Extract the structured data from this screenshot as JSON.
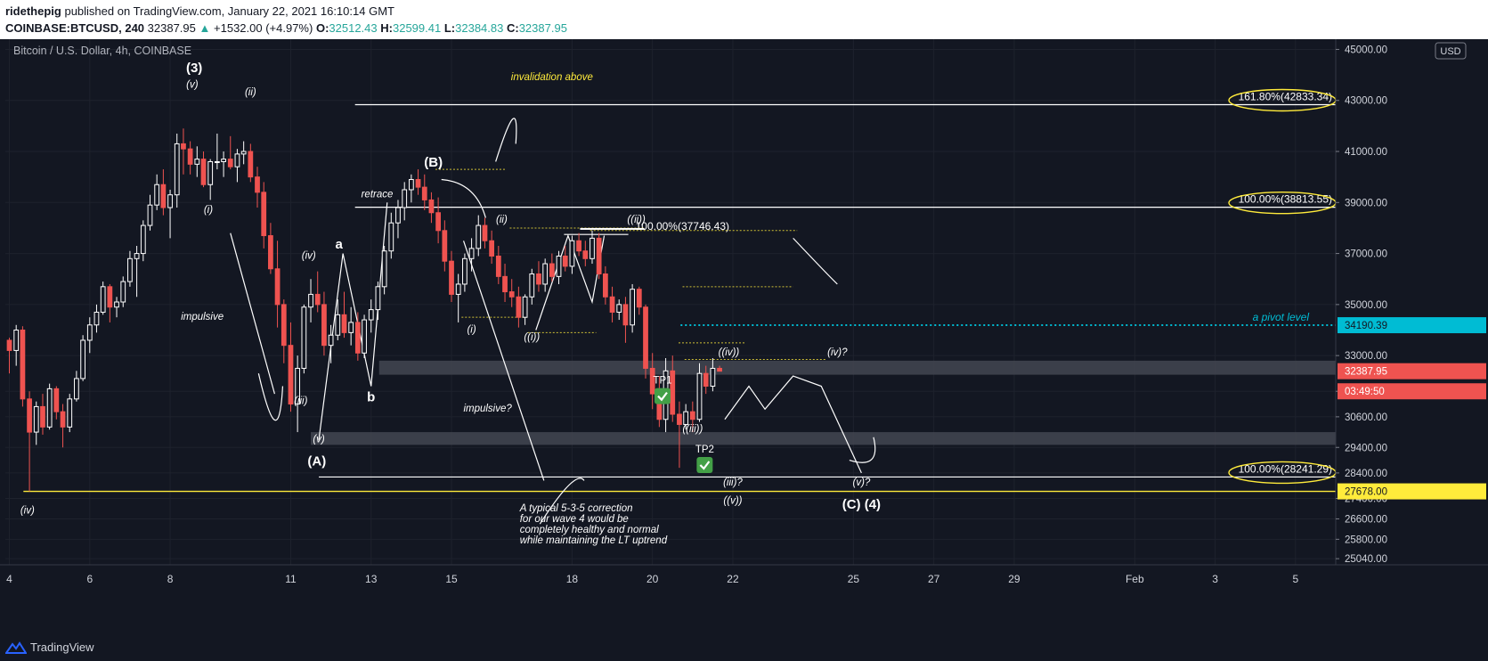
{
  "header": {
    "author": "ridethepig",
    "published": "published on TradingView.com, January 22, 2021 16:10:14 GMT",
    "symbol": "COINBASE:BTCUSD, 240",
    "last": "32387.95",
    "change": "+1532.00 (+4.97%)",
    "o_label": "O:",
    "o": "32512.43",
    "h_label": "H:",
    "h": "32599.41",
    "l_label": "L:",
    "l": "32384.83",
    "c_label": "C:",
    "c": "32387.95"
  },
  "footer": {
    "brand": "TradingView"
  },
  "colors": {
    "bg": "#131722",
    "up": "#ffffff",
    "down": "#ef5350",
    "grid": "#1e222d",
    "pivot": "#00bcd4",
    "yellow": "#ffeb3b"
  },
  "chart_data": {
    "type": "candlestick",
    "title": "Bitcoin / U.S. Dollar, 4h, COINBASE",
    "currency": "USD",
    "y_ticks": [
      25040,
      25800,
      26600,
      27400,
      28400,
      29400,
      30600,
      31600,
      33000,
      35000,
      37000,
      39000,
      41000,
      43000,
      45000
    ],
    "y_range": [
      24800,
      45400
    ],
    "x_ticks": [
      {
        "label": "4",
        "day": 4
      },
      {
        "label": "6",
        "day": 6
      },
      {
        "label": "8",
        "day": 8
      },
      {
        "label": "11",
        "day": 11
      },
      {
        "label": "13",
        "day": 13
      },
      {
        "label": "15",
        "day": 15
      },
      {
        "label": "18",
        "day": 18
      },
      {
        "label": "20",
        "day": 20
      },
      {
        "label": "22",
        "day": 22
      },
      {
        "label": "25",
        "day": 25
      },
      {
        "label": "27",
        "day": 27
      },
      {
        "label": "29",
        "day": 29
      },
      {
        "label": "Feb",
        "day": 32
      },
      {
        "label": "3",
        "day": 34
      },
      {
        "label": "5",
        "day": 36
      }
    ],
    "price_labels": [
      {
        "price": "34190.39",
        "kind": "pivot"
      },
      {
        "price": "32387.95",
        "kind": "last"
      },
      {
        "price": "03:49:50",
        "kind": "countdown"
      },
      {
        "price": "27678.00",
        "kind": "support"
      }
    ],
    "levels": [
      {
        "price": 42833.34,
        "from": 12.6,
        "label": "161.80%(42833.34)"
      },
      {
        "price": 38813.55,
        "from": 12.6,
        "label": "100.00%(38813.55)"
      },
      {
        "price": 37746.43,
        "from": 17.8,
        "to": 19.4,
        "label": "100.00%(37746.43)"
      },
      {
        "price": 28241.29,
        "from": 11.7,
        "label": "100.00%(28241.29)"
      },
      {
        "price": 34190.39,
        "from": 20.7,
        "label": "a pivot level",
        "style": "pivot"
      },
      {
        "price": 27678.0,
        "from": 4.35,
        "label": "",
        "style": "yellow"
      }
    ],
    "zones": [
      {
        "from": 13.2,
        "top": 32800,
        "bottom": 32250
      },
      {
        "from": 11.5,
        "top": 30000,
        "bottom": 29500
      }
    ],
    "annotations": [
      {
        "text": "(3)",
        "day": 8.6,
        "price": 44100,
        "bold": true
      },
      {
        "text": "(v)",
        "day": 8.55,
        "price": 43500
      },
      {
        "text": "(ii)",
        "day": 10.0,
        "price": 43200
      },
      {
        "text": "(i)",
        "day": 8.95,
        "price": 38600
      },
      {
        "text": "impulsive",
        "day": 8.8,
        "price": 34400
      },
      {
        "text": "(iv)",
        "day": 11.45,
        "price": 36800
      },
      {
        "text": "a",
        "day": 12.2,
        "price": 37200,
        "bold": true
      },
      {
        "text": "(iii)",
        "day": 11.25,
        "price": 31100
      },
      {
        "text": "(v)",
        "day": 11.7,
        "price": 29600
      },
      {
        "text": "(A)",
        "day": 11.65,
        "price": 28700,
        "bold": true
      },
      {
        "text": "b",
        "day": 13.0,
        "price": 31200,
        "bold": true
      },
      {
        "text": "retrace",
        "day": 13.15,
        "price": 39200
      },
      {
        "text": "invalidation above",
        "day": 17.5,
        "price": 43800,
        "color": "#ffeb3b"
      },
      {
        "text": "(B)",
        "day": 14.55,
        "price": 40400,
        "bold": true
      },
      {
        "text": "(ii)",
        "day": 16.25,
        "price": 38200
      },
      {
        "text": "((ii))",
        "day": 19.6,
        "price": 38200
      },
      {
        "text": "(i)",
        "day": 15.5,
        "price": 33900
      },
      {
        "text": "((i))",
        "day": 17.0,
        "price": 33600
      },
      {
        "text": "impulsive?",
        "day": 15.9,
        "price": 30800
      },
      {
        "text": "TP1",
        "day": 20.25,
        "price": 31900
      },
      {
        "text": "((iv))",
        "day": 21.9,
        "price": 33000
      },
      {
        "text": "(iv)?",
        "day": 24.6,
        "price": 33000
      },
      {
        "text": "((iii))",
        "day": 21.0,
        "price": 30000
      },
      {
        "text": "TP2",
        "day": 21.3,
        "price": 29200
      },
      {
        "text": "(iii)?",
        "day": 22.0,
        "price": 27900
      },
      {
        "text": "((v))",
        "day": 22.0,
        "price": 27200
      },
      {
        "text": "(v)?",
        "day": 25.2,
        "price": 27900
      },
      {
        "text": "(C) (4)",
        "day": 25.2,
        "price": 27000,
        "bold": true
      },
      {
        "text": "(iv)",
        "day": 4.45,
        "price": 26800
      }
    ],
    "note": [
      "A typical 5-3-5 correction",
      "for our wave 4 would be",
      "completely healthy and normal",
      "while maintaining the LT uptrend"
    ],
    "candles": [
      [
        4.0,
        33600,
        33700,
        32300,
        33200
      ],
      [
        4.17,
        33200,
        34200,
        32600,
        34000
      ],
      [
        4.33,
        34000,
        34150,
        31000,
        31300
      ],
      [
        4.5,
        31300,
        31600,
        27678,
        30000
      ],
      [
        4.67,
        30000,
        31200,
        29500,
        31000
      ],
      [
        4.83,
        31000,
        31500,
        29900,
        30200
      ],
      [
        5.0,
        30200,
        31900,
        30100,
        31700
      ],
      [
        5.17,
        31700,
        31800,
        30500,
        30800
      ],
      [
        5.33,
        30800,
        31100,
        29400,
        30200
      ],
      [
        5.5,
        30200,
        31500,
        30000,
        31300
      ],
      [
        5.67,
        31300,
        32400,
        31200,
        32100
      ],
      [
        5.83,
        32100,
        33800,
        32000,
        33600
      ],
      [
        6.0,
        33600,
        34500,
        33100,
        34200
      ],
      [
        6.17,
        34200,
        35000,
        33900,
        34700
      ],
      [
        6.33,
        34700,
        35900,
        34600,
        35700
      ],
      [
        6.5,
        35700,
        35800,
        34300,
        34900
      ],
      [
        6.67,
        34900,
        35300,
        34500,
        35100
      ],
      [
        6.83,
        35100,
        36100,
        34900,
        35900
      ],
      [
        7.0,
        35900,
        37100,
        35700,
        36800
      ],
      [
        7.17,
        36800,
        37300,
        35300,
        37000
      ],
      [
        7.33,
        37000,
        38300,
        36700,
        38100
      ],
      [
        7.5,
        38100,
        39300,
        37900,
        38900
      ],
      [
        7.67,
        38900,
        40100,
        38700,
        39700
      ],
      [
        7.83,
        39700,
        40300,
        38500,
        38800
      ],
      [
        8.0,
        38800,
        39500,
        37600,
        39300
      ],
      [
        8.17,
        39300,
        41700,
        38800,
        41300
      ],
      [
        8.33,
        41300,
        41900,
        40100,
        41100
      ],
      [
        8.5,
        41100,
        41400,
        40100,
        40500
      ],
      [
        8.67,
        40500,
        41200,
        40000,
        40700
      ],
      [
        8.83,
        40700,
        41000,
        39600,
        39700
      ],
      [
        9.0,
        39700,
        40700,
        39100,
        40600
      ],
      [
        9.17,
        40600,
        41700,
        40300,
        40600
      ],
      [
        9.33,
        40600,
        41000,
        40000,
        40700
      ],
      [
        9.5,
        40700,
        41600,
        40300,
        40400
      ],
      [
        9.67,
        40400,
        41100,
        39800,
        40900
      ],
      [
        9.83,
        40900,
        41400,
        40500,
        41000
      ],
      [
        10.0,
        41000,
        41300,
        39800,
        40000
      ],
      [
        10.17,
        40000,
        40400,
        38800,
        39400
      ],
      [
        10.33,
        39400,
        39800,
        37200,
        37700
      ],
      [
        10.5,
        37700,
        38200,
        36200,
        36400
      ],
      [
        10.67,
        36400,
        37500,
        34100,
        35000
      ],
      [
        10.83,
        35000,
        35200,
        32700,
        33400
      ],
      [
        11.0,
        33400,
        34300,
        30800,
        31100
      ],
      [
        11.17,
        31100,
        33000,
        30000,
        32500
      ],
      [
        11.33,
        32500,
        35000,
        32300,
        34900
      ],
      [
        11.5,
        34900,
        36000,
        34300,
        35400
      ],
      [
        11.67,
        35400,
        36300,
        34700,
        35000
      ],
      [
        11.83,
        35000,
        35500,
        33000,
        33400
      ],
      [
        12.0,
        33400,
        34200,
        32700,
        33800
      ],
      [
        12.17,
        33800,
        35200,
        33600,
        34600
      ],
      [
        12.33,
        34600,
        35500,
        33700,
        33900
      ],
      [
        12.5,
        33900,
        34900,
        33400,
        34300
      ],
      [
        12.67,
        34300,
        34700,
        32800,
        33100
      ],
      [
        12.83,
        33100,
        34600,
        32900,
        34400
      ],
      [
        13.0,
        34400,
        35200,
        33900,
        34800
      ],
      [
        13.17,
        34800,
        35900,
        34400,
        35700
      ],
      [
        13.33,
        35700,
        37300,
        35400,
        37100
      ],
      [
        13.5,
        37100,
        38600,
        36800,
        38200
      ],
      [
        13.67,
        38200,
        39100,
        37600,
        38800
      ],
      [
        13.83,
        38800,
        39800,
        38300,
        39500
      ],
      [
        14.0,
        39500,
        40100,
        39000,
        39900
      ],
      [
        14.17,
        39900,
        40300,
        39300,
        39600
      ],
      [
        14.33,
        39600,
        40100,
        38700,
        39100
      ],
      [
        14.5,
        39100,
        39400,
        38200,
        38600
      ],
      [
        14.67,
        38600,
        39200,
        37400,
        37900
      ],
      [
        14.83,
        37900,
        38300,
        36300,
        36700
      ],
      [
        15.0,
        36700,
        37100,
        35100,
        35400
      ],
      [
        15.17,
        35400,
        36200,
        34300,
        35800
      ],
      [
        15.33,
        35800,
        37000,
        35500,
        36800
      ],
      [
        15.5,
        36800,
        37600,
        36300,
        37200
      ],
      [
        15.67,
        37200,
        38500,
        36900,
        38100
      ],
      [
        15.83,
        38100,
        38400,
        37200,
        37500
      ],
      [
        16.0,
        37500,
        37900,
        36600,
        36900
      ],
      [
        16.17,
        36900,
        37300,
        35800,
        36100
      ],
      [
        16.33,
        36100,
        36600,
        35100,
        35500
      ],
      [
        16.5,
        35500,
        36000,
        34900,
        35300
      ],
      [
        16.67,
        35300,
        35700,
        34100,
        34500
      ],
      [
        16.83,
        34500,
        35400,
        34200,
        35300
      ],
      [
        17.0,
        35300,
        36400,
        35000,
        36200
      ],
      [
        17.17,
        36200,
        36700,
        35500,
        35800
      ],
      [
        17.33,
        35800,
        36800,
        35500,
        36600
      ],
      [
        17.5,
        36600,
        37000,
        35900,
        36100
      ],
      [
        17.67,
        36100,
        37100,
        35800,
        36900
      ],
      [
        17.83,
        36900,
        37300,
        36300,
        36500
      ],
      [
        18.0,
        36500,
        37700,
        36200,
        37500
      ],
      [
        18.17,
        37500,
        37800,
        36900,
        37100
      ],
      [
        18.33,
        37100,
        37500,
        36500,
        36800
      ],
      [
        18.5,
        36800,
        37900,
        36600,
        37600
      ],
      [
        18.67,
        37600,
        37800,
        36000,
        36200
      ],
      [
        18.83,
        36200,
        36500,
        35000,
        35300
      ],
      [
        19.0,
        35300,
        35700,
        34300,
        34700
      ],
      [
        19.17,
        34700,
        35200,
        34400,
        35000
      ],
      [
        19.33,
        35000,
        35300,
        33500,
        34200
      ],
      [
        19.5,
        34200,
        35800,
        33900,
        35600
      ],
      [
        19.67,
        35600,
        35700,
        34600,
        34900
      ],
      [
        19.83,
        34900,
        35000,
        32100,
        32500
      ],
      [
        20.0,
        32500,
        33100,
        30900,
        31500
      ],
      [
        20.17,
        31500,
        32200,
        30200,
        30500
      ],
      [
        20.33,
        30500,
        32900,
        30000,
        32400
      ],
      [
        20.5,
        32400,
        33000,
        30400,
        30700
      ],
      [
        20.67,
        30700,
        31200,
        28600,
        30300
      ],
      [
        20.83,
        30300,
        31100,
        30100,
        30800
      ],
      [
        21.0,
        30800,
        31200,
        30000,
        30500
      ],
      [
        21.17,
        30500,
        32700,
        30400,
        32300
      ],
      [
        21.33,
        32300,
        32600,
        31500,
        31800
      ],
      [
        21.5,
        31800,
        32900,
        31600,
        32500
      ],
      [
        21.67,
        32500,
        32600,
        32380,
        32388
      ]
    ]
  }
}
